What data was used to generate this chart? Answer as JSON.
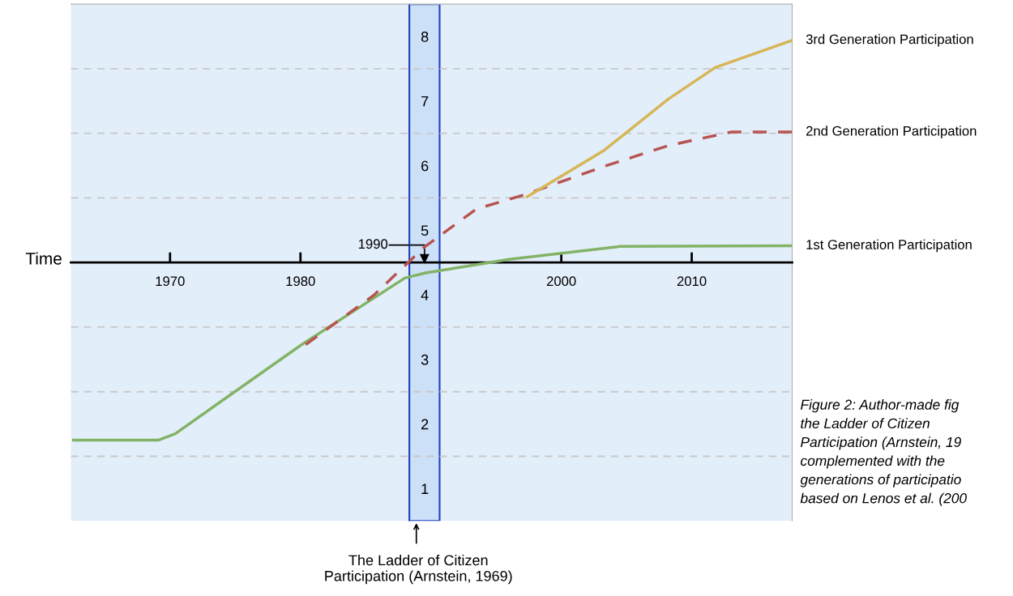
{
  "chart_data": {
    "type": "line",
    "xlabel": "Time",
    "xlim": [
      1962.4,
      2017.7
    ],
    "ylim": [
      0.5,
      8.5
    ],
    "xticks": [
      1970,
      1980,
      2000,
      2010
    ],
    "yticks": [
      {
        "value": 1,
        "label": "1"
      },
      {
        "value": 2,
        "label": "2"
      },
      {
        "value": 3,
        "label": "3"
      },
      {
        "value": 4,
        "label": "4"
      },
      {
        "value": 5,
        "label": "5"
      },
      {
        "value": 6,
        "label": "6"
      },
      {
        "value": 7,
        "label": "7"
      },
      {
        "value": 8,
        "label": "8"
      }
    ],
    "grid": false,
    "legend": false,
    "marker": "none",
    "series": [
      {
        "name": "1st Generation Participation",
        "color": "#82b366",
        "line_style": "solid",
        "x": [
          1962.6,
          1969.1,
          1970.4,
          1980.1,
          1988.0,
          1989.6,
          1996.0,
          2004.5,
          2017.7
        ],
        "values": [
          1.75,
          1.75,
          1.85,
          3.23,
          4.26,
          4.34,
          4.55,
          4.75,
          4.76
        ]
      },
      {
        "name": "2nd Generation Participation",
        "color": "#b85450",
        "line_style": "dashed",
        "x": [
          1980.4,
          1985.6,
          1989.5,
          1993.5,
          1997.2,
          2003.3,
          2008.2,
          2013.0,
          2017.7
        ],
        "values": [
          3.23,
          3.99,
          4.74,
          5.33,
          5.55,
          5.99,
          6.31,
          6.52,
          6.52
        ]
      },
      {
        "name": "3rd Generation Participation",
        "color": "#d6b656",
        "line_style": "solid",
        "x": [
          1997.4,
          2003.3,
          2008.2,
          2011.8,
          2017.7
        ],
        "values": [
          5.52,
          6.24,
          7.03,
          7.52,
          7.94
        ]
      }
    ],
    "ref_lines": [
      {
        "axis": "y",
        "value": 1.5,
        "color": "#c8c8c8",
        "line_style": "dashed"
      },
      {
        "axis": "y",
        "value": 2.5,
        "color": "#c8c8c8",
        "line_style": "dashed"
      },
      {
        "axis": "y",
        "value": 3.5,
        "color": "#c8c8c8",
        "line_style": "dashed"
      },
      {
        "axis": "y",
        "value": 5.5,
        "color": "#c8c8c8",
        "line_style": "dashed"
      },
      {
        "axis": "y",
        "value": 6.5,
        "color": "#c8c8c8",
        "line_style": "dashed"
      },
      {
        "axis": "y",
        "value": 7.5,
        "color": "#c8c8c8",
        "line_style": "dashed"
      }
    ],
    "bands": [
      {
        "axis": "x",
        "from": 1988.35,
        "to": 1990.67,
        "color": "#cce0f8"
      }
    ],
    "annotations": [
      "1990",
      "The Ladder of Citizen\nParticipation (Arnstein, 1969)",
      "Figure 2: Author-made fig\nthe Ladder of Citizen\nParticipation (Arnstein, 19\ncomplemented with the\ngenerations of participatio\nbased on Lenos et al. (200"
    ]
  }
}
